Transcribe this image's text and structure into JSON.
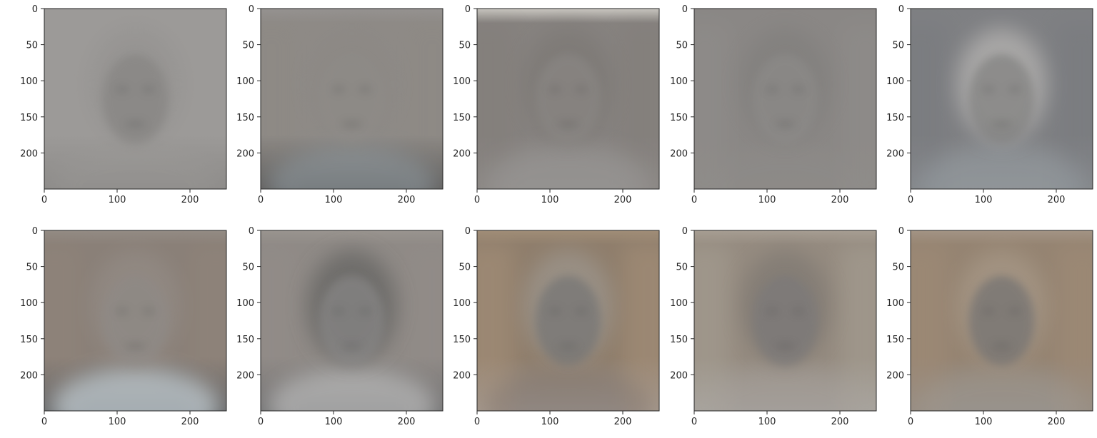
{
  "figure": {
    "rows": 2,
    "cols": 5,
    "background": "#ffffff",
    "axis_color": "#262626"
  },
  "chart_data": [
    {
      "type": "image",
      "xlim": [
        0,
        250
      ],
      "ylim": [
        250,
        0
      ],
      "xticks": [
        0,
        100,
        200
      ],
      "yticks": [
        0,
        50,
        100,
        150,
        200
      ],
      "grid": false,
      "image": {
        "bg": "#9c9a98",
        "face": "#8a8886",
        "face_opacity": 0.9,
        "hair": "#8a8886",
        "hair_opacity": 0.3,
        "body": "#9e9c9a",
        "body_opacity": 0.3,
        "top_band": "#9c9a98",
        "shade": "#8d8b89",
        "tint": "#9c9a98",
        "tint_opacity": 0
      }
    },
    {
      "type": "image",
      "xlim": [
        0,
        250
      ],
      "ylim": [
        250,
        0
      ],
      "xticks": [
        0,
        100,
        200
      ],
      "yticks": [
        0,
        50,
        100,
        150,
        200
      ],
      "grid": false,
      "image": {
        "bg": "#8e8a86",
        "face": "#8f8c89",
        "face_opacity": 0.4,
        "hair": "#8a8784",
        "hair_opacity": 0.3,
        "body": "#8f9aa0",
        "body_opacity": 0.55,
        "top_band": "#959290",
        "shade": "#5f5e5d",
        "tint": "#8a8680",
        "tint_opacity": 0.1
      }
    },
    {
      "type": "image",
      "xlim": [
        0,
        250
      ],
      "ylim": [
        250,
        0
      ],
      "xticks": [
        0,
        100,
        200
      ],
      "yticks": [
        0,
        50,
        100,
        150,
        200
      ],
      "grid": false,
      "image": {
        "bg": "#86827f",
        "face": "#8b8885",
        "face_opacity": 0.6,
        "hair": "#77736f",
        "hair_opacity": 0.45,
        "body": "#9b9a99",
        "body_opacity": 0.5,
        "top_band": "#c9c6c0",
        "shade": "#8e8b88",
        "tint": "#7e7772",
        "tint_opacity": 0.2
      }
    },
    {
      "type": "image",
      "xlim": [
        0,
        250
      ],
      "ylim": [
        250,
        0
      ],
      "xticks": [
        0,
        100,
        200
      ],
      "yticks": [
        0,
        50,
        100,
        150,
        200
      ],
      "grid": false,
      "image": {
        "bg": "#8a8785",
        "face": "#8f8d8b",
        "face_opacity": 0.55,
        "hair": "#7c7a78",
        "hair_opacity": 0.45,
        "body": "#8f8d8b",
        "body_opacity": 0.35,
        "top_band": "#8a8785",
        "shade": "#8c8986",
        "tint": "#9e9c99",
        "tint_opacity": 0.15
      }
    },
    {
      "type": "image",
      "xlim": [
        0,
        250
      ],
      "ylim": [
        250,
        0
      ],
      "xticks": [
        0,
        100,
        200
      ],
      "yticks": [
        0,
        50,
        100,
        150,
        200
      ],
      "grid": false,
      "image": {
        "bg": "#7f8083",
        "face": "#7c7b7a",
        "face_opacity": 0.6,
        "hair": "#c9c6c2",
        "hair_opacity": 0.55,
        "body": "#9aa3a8",
        "body_opacity": 0.4,
        "top_band": "#7f8083",
        "shade": "#8a8c8f",
        "tint": "#6d7177",
        "tint_opacity": 0.2
      }
    },
    {
      "type": "image",
      "xlim": [
        0,
        250
      ],
      "ylim": [
        250,
        0
      ],
      "xticks": [
        0,
        100,
        200
      ],
      "yticks": [
        0,
        50,
        100,
        150,
        200
      ],
      "grid": false,
      "image": {
        "bg": "#8a8078",
        "face": "#8e8a87",
        "face_opacity": 0.6,
        "hair": "#9d9894",
        "hair_opacity": 0.35,
        "body": "#c5cfd4",
        "body_opacity": 0.7,
        "top_band": "#938b84",
        "shade": "#5c6064",
        "tint": "#9b8b7e",
        "tint_opacity": 0.2
      }
    },
    {
      "type": "image",
      "xlim": [
        0,
        250
      ],
      "ylim": [
        250,
        0
      ],
      "xticks": [
        0,
        100,
        200
      ],
      "yticks": [
        0,
        50,
        100,
        150,
        200
      ],
      "grid": false,
      "image": {
        "bg": "#8f8a86",
        "face": "#8b8a8a",
        "face_opacity": 0.6,
        "hair": "#5f5e5d",
        "hair_opacity": 0.65,
        "body": "#c4c4c4",
        "body_opacity": 0.6,
        "top_band": "#99948f",
        "shade": "#6e6f70",
        "tint": "#9c9390",
        "tint_opacity": 0.15
      }
    },
    {
      "type": "image",
      "xlim": [
        0,
        250
      ],
      "ylim": [
        250,
        0
      ],
      "xticks": [
        0,
        100,
        200
      ],
      "yticks": [
        0,
        50,
        100,
        150,
        200
      ],
      "grid": false,
      "image": {
        "bg": "#8f7e6c",
        "face": "#757474",
        "face_opacity": 0.7,
        "hair": "#a4a4a2",
        "hair_opacity": 0.45,
        "body": "#7b6f69",
        "body_opacity": 0.4,
        "top_band": "#a08d77",
        "shade": "#9e9792",
        "tint": "#b29a80",
        "tint_opacity": 0.35
      }
    },
    {
      "type": "image",
      "xlim": [
        0,
        250
      ],
      "ylim": [
        250,
        0
      ],
      "xticks": [
        0,
        100,
        200
      ],
      "yticks": [
        0,
        50,
        100,
        150,
        200
      ],
      "grid": false,
      "image": {
        "bg": "#958b80",
        "face": "#7c7979",
        "face_opacity": 0.7,
        "hair": "#6d6a68",
        "hair_opacity": 0.4,
        "body": "#a59f99",
        "body_opacity": 0.45,
        "top_band": "#a69d92",
        "shade": "#a39f9b",
        "tint": "#b9b6a8",
        "tint_opacity": 0.25
      }
    },
    {
      "type": "image",
      "xlim": [
        0,
        250
      ],
      "ylim": [
        250,
        0
      ],
      "xticks": [
        0,
        100,
        200
      ],
      "yticks": [
        0,
        50,
        100,
        150,
        200
      ],
      "grid": false,
      "image": {
        "bg": "#958472",
        "face": "#737272",
        "face_opacity": 0.7,
        "hair": "#b5a898",
        "hair_opacity": 0.4,
        "body": "#a19b94",
        "body_opacity": 0.4,
        "top_band": "#a39485",
        "shade": "#928d87",
        "tint": "#a8917a",
        "tint_opacity": 0.3
      }
    }
  ]
}
